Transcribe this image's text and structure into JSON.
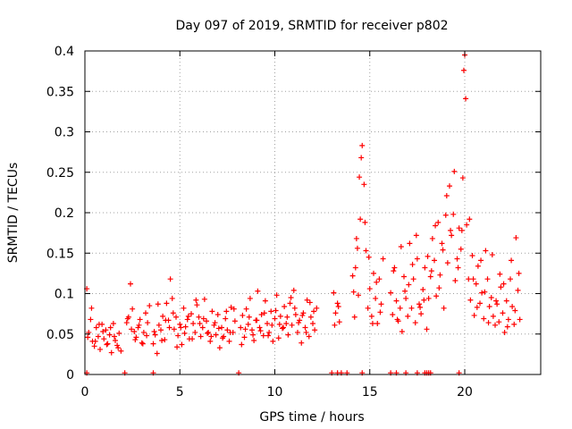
{
  "chart_data": {
    "type": "scatter",
    "title": "Day 097 of 2019, SRMTID for receiver p802",
    "xlabel": "GPS time / hours",
    "ylabel": "SRMTID / TECUs",
    "xlim": [
      0,
      24
    ],
    "ylim": [
      0,
      0.4
    ],
    "xticks": [
      0,
      5,
      10,
      15,
      20
    ],
    "xtick_labels": [
      "0",
      "5",
      "10",
      "15",
      "20"
    ],
    "yticks": [
      0,
      0.05,
      0.1,
      0.15,
      0.2,
      0.25,
      0.3,
      0.35,
      0.4
    ],
    "ytick_labels": [
      "0",
      "0.05",
      "0.1",
      "0.15",
      "0.2",
      "0.25",
      "0.3",
      "0.35",
      "0.4"
    ],
    "grid": true,
    "marker": "+",
    "color": "#ff0000",
    "series": [
      {
        "name": "SRMTID",
        "x": [
          0.1,
          0.2,
          0.3,
          0.4,
          0.5,
          0.6,
          0.7,
          0.8,
          0.9,
          1.0,
          1.1,
          1.2,
          1.3,
          1.4,
          1.5,
          1.6,
          1.7,
          1.8,
          1.9,
          2.2,
          2.3,
          2.4,
          2.5,
          2.6,
          2.7,
          2.8,
          2.9,
          3.0,
          3.1,
          3.2,
          3.3,
          3.4,
          3.6,
          3.7,
          3.8,
          3.9,
          4.0,
          4.1,
          4.2,
          4.3,
          4.4,
          4.5,
          4.6,
          4.7,
          4.8,
          4.9,
          5.0,
          5.1,
          5.2,
          5.3,
          5.4,
          5.5,
          5.6,
          5.7,
          5.8,
          5.9,
          6.0,
          6.1,
          6.2,
          6.3,
          6.4,
          6.5,
          6.6,
          6.7,
          6.8,
          6.9,
          7.0,
          7.1,
          7.2,
          7.3,
          7.4,
          7.5,
          7.6,
          7.7,
          7.8,
          7.9,
          8.2,
          8.3,
          8.4,
          8.5,
          8.6,
          8.7,
          8.8,
          8.9,
          9.0,
          9.1,
          9.2,
          9.3,
          9.4,
          9.5,
          9.6,
          9.7,
          9.8,
          9.9,
          10.0,
          10.1,
          10.2,
          10.3,
          10.4,
          10.5,
          10.6,
          10.7,
          10.8,
          10.9,
          11.0,
          11.1,
          11.2,
          11.3,
          11.4,
          11.5,
          11.6,
          11.7,
          11.8,
          11.9,
          12.0,
          12.1,
          12.2,
          13.1,
          13.2,
          13.3,
          13.4,
          14.1,
          14.2,
          14.3,
          14.4,
          14.5,
          14.6,
          14.7,
          14.8,
          14.9,
          15.0,
          15.1,
          15.2,
          15.3,
          15.4,
          15.5,
          15.6,
          15.7,
          16.1,
          16.2,
          16.3,
          16.4,
          16.5,
          16.6,
          16.7,
          16.8,
          16.9,
          17.0,
          17.1,
          17.2,
          17.3,
          17.4,
          17.5,
          17.6,
          17.7,
          17.8,
          17.9,
          18.0,
          18.1,
          18.2,
          18.3,
          18.4,
          18.5,
          18.6,
          18.7,
          18.8,
          18.9,
          19.0,
          19.1,
          19.2,
          19.3,
          19.4,
          19.5,
          19.6,
          19.7,
          19.8,
          19.9,
          20.0,
          20.1,
          20.2,
          20.3,
          20.4,
          20.5,
          20.6,
          20.7,
          20.8,
          20.9,
          21.0,
          21.1,
          21.2,
          21.3,
          21.4,
          21.5,
          21.6,
          21.7,
          21.8,
          21.9,
          22.0,
          22.1,
          22.2,
          22.3,
          22.4,
          22.5,
          22.6,
          22.7,
          22.8,
          22.9,
          0.15,
          0.35,
          0.55,
          0.75,
          0.95,
          1.15,
          1.35,
          1.55,
          1.75,
          2.25,
          2.45,
          2.65,
          2.85,
          3.05,
          3.25,
          3.65,
          3.85,
          4.05,
          4.25,
          4.45,
          4.65,
          4.85,
          5.05,
          5.25,
          5.45,
          5.65,
          5.85,
          6.05,
          6.25,
          6.45,
          6.65,
          6.85,
          7.05,
          7.25,
          7.45,
          7.65,
          7.85,
          8.25,
          8.45,
          8.65,
          8.85,
          9.05,
          9.25,
          9.45,
          9.65,
          9.85,
          10.05,
          10.25,
          10.45,
          10.65,
          10.85,
          11.05,
          11.25,
          11.45,
          11.65,
          11.85,
          12.05,
          13.15,
          13.35,
          14.15,
          14.25,
          14.35,
          14.45,
          14.55,
          14.75,
          14.95,
          15.15,
          15.35,
          15.55,
          16.25,
          16.45,
          16.65,
          16.85,
          17.05,
          17.25,
          17.45,
          17.65,
          17.85,
          18.05,
          18.25,
          18.45,
          18.65,
          18.85,
          19.05,
          19.25,
          19.45,
          19.65,
          19.85,
          19.95,
          20.05,
          20.25,
          20.45,
          20.65,
          20.85,
          21.05,
          21.25,
          21.45,
          21.65,
          21.85,
          22.05,
          22.25,
          22.45,
          22.65,
          22.85,
          0.1,
          2.1,
          3.6,
          8.1,
          13.0,
          13.3,
          13.5,
          13.8,
          14.6,
          16.1,
          16.4,
          16.9,
          17.5,
          17.9,
          18.0,
          18.1,
          18.2,
          19.7
        ],
        "y": [
          0.106,
          0.052,
          0.068,
          0.041,
          0.035,
          0.058,
          0.047,
          0.031,
          0.062,
          0.044,
          0.055,
          0.038,
          0.049,
          0.027,
          0.063,
          0.042,
          0.036,
          0.051,
          0.029,
          0.064,
          0.071,
          0.112,
          0.081,
          0.053,
          0.046,
          0.058,
          0.068,
          0.039,
          0.052,
          0.076,
          0.064,
          0.085,
          0.038,
          0.049,
          0.026,
          0.061,
          0.055,
          0.072,
          0.043,
          0.088,
          0.067,
          0.118,
          0.094,
          0.056,
          0.071,
          0.048,
          0.062,
          0.037,
          0.082,
          0.059,
          0.068,
          0.044,
          0.075,
          0.063,
          0.052,
          0.086,
          0.071,
          0.047,
          0.058,
          0.093,
          0.066,
          0.052,
          0.041,
          0.078,
          0.061,
          0.049,
          0.074,
          0.033,
          0.058,
          0.047,
          0.069,
          0.055,
          0.041,
          0.083,
          0.052,
          0.066,
          0.058,
          0.073,
          0.046,
          0.081,
          0.062,
          0.094,
          0.055,
          0.042,
          0.067,
          0.103,
          0.058,
          0.074,
          0.048,
          0.091,
          0.063,
          0.052,
          0.078,
          0.041,
          0.069,
          0.098,
          0.045,
          0.072,
          0.057,
          0.084,
          0.063,
          0.049,
          0.088,
          0.061,
          0.104,
          0.074,
          0.052,
          0.067,
          0.039,
          0.076,
          0.058,
          0.092,
          0.047,
          0.071,
          0.063,
          0.055,
          0.082,
          0.101,
          0.076,
          0.088,
          0.065,
          0.122,
          0.071,
          0.168,
          0.098,
          0.192,
          0.283,
          0.235,
          0.153,
          0.082,
          0.106,
          0.072,
          0.125,
          0.094,
          0.063,
          0.118,
          0.087,
          0.143,
          0.101,
          0.074,
          0.132,
          0.091,
          0.066,
          0.082,
          0.053,
          0.121,
          0.094,
          0.072,
          0.162,
          0.082,
          0.118,
          0.064,
          0.143,
          0.087,
          0.075,
          0.105,
          0.132,
          0.056,
          0.094,
          0.121,
          0.168,
          0.141,
          0.097,
          0.188,
          0.123,
          0.162,
          0.082,
          0.197,
          0.138,
          0.233,
          0.172,
          0.198,
          0.116,
          0.143,
          0.181,
          0.155,
          0.243,
          0.395,
          0.185,
          0.118,
          0.092,
          0.147,
          0.073,
          0.112,
          0.134,
          0.088,
          0.101,
          0.069,
          0.153,
          0.118,
          0.084,
          0.095,
          0.072,
          0.061,
          0.087,
          0.065,
          0.108,
          0.076,
          0.052,
          0.091,
          0.068,
          0.118,
          0.084,
          0.062,
          0.169,
          0.104,
          0.068,
          0.046,
          0.082,
          0.041,
          0.062,
          0.053,
          0.037,
          0.058,
          0.047,
          0.033,
          0.069,
          0.056,
          0.043,
          0.061,
          0.038,
          0.048,
          0.053,
          0.087,
          0.042,
          0.067,
          0.058,
          0.076,
          0.034,
          0.058,
          0.051,
          0.072,
          0.044,
          0.092,
          0.063,
          0.069,
          0.051,
          0.047,
          0.064,
          0.057,
          0.045,
          0.078,
          0.052,
          0.081,
          0.037,
          0.056,
          0.071,
          0.049,
          0.067,
          0.054,
          0.076,
          0.048,
          0.061,
          0.079,
          0.062,
          0.058,
          0.071,
          0.095,
          0.082,
          0.064,
          0.073,
          0.052,
          0.089,
          0.078,
          0.061,
          0.084,
          0.102,
          0.132,
          0.156,
          0.244,
          0.268,
          0.188,
          0.145,
          0.063,
          0.114,
          0.077,
          0.128,
          0.068,
          0.158,
          0.103,
          0.111,
          0.136,
          0.172,
          0.083,
          0.092,
          0.146,
          0.128,
          0.184,
          0.107,
          0.154,
          0.221,
          0.178,
          0.251,
          0.132,
          0.178,
          0.376,
          0.341,
          0.192,
          0.118,
          0.083,
          0.141,
          0.102,
          0.064,
          0.148,
          0.091,
          0.124,
          0.112,
          0.059,
          0.141,
          0.079,
          0.125,
          0.002,
          0.002,
          0.002,
          0.002,
          0.002,
          0.002,
          0.002,
          0.002,
          0.002,
          0.002,
          0.002,
          0.002,
          0.002,
          0.002,
          0.002,
          0.002,
          0.002,
          0.002
        ]
      }
    ]
  }
}
